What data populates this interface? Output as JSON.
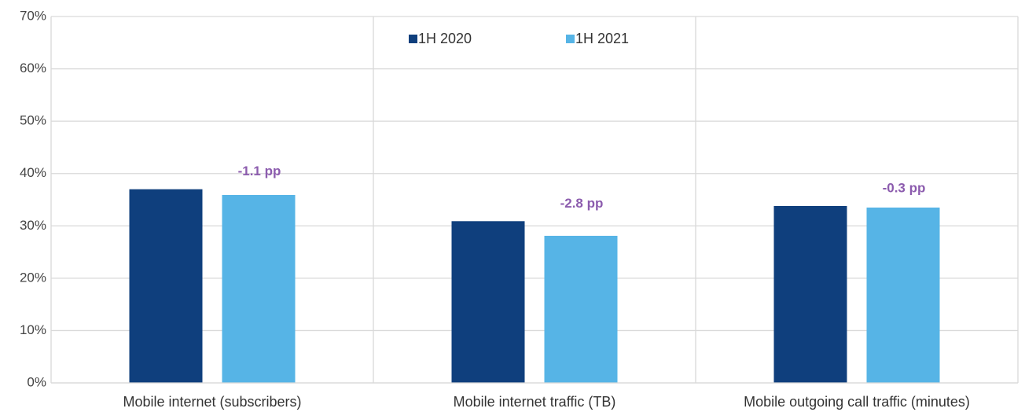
{
  "chart_data": {
    "type": "bar",
    "categories": [
      "Mobile internet (subscribers)",
      "Mobile internet traffic (TB)",
      "Mobile outgoing call traffic (minutes)"
    ],
    "series": [
      {
        "name": "1H 2020",
        "color": "#0f3f7d",
        "values": [
          37.0,
          30.9,
          33.8
        ]
      },
      {
        "name": "1H 2021",
        "color": "#56b4e6",
        "values": [
          35.9,
          28.1,
          33.5
        ]
      }
    ],
    "annotations": [
      "-1.1 pp",
      "-2.8 pp",
      "-0.3 pp"
    ],
    "ylim": [
      0,
      70
    ],
    "yticks": [
      {
        "value": 0,
        "label": "0%"
      },
      {
        "value": 10,
        "label": "10%"
      },
      {
        "value": 20,
        "label": "20%"
      },
      {
        "value": 30,
        "label": "30%"
      },
      {
        "value": 40,
        "label": "40%"
      },
      {
        "value": 50,
        "label": "50%"
      },
      {
        "value": 60,
        "label": "60%"
      },
      {
        "value": 70,
        "label": "70%"
      }
    ],
    "grid": true
  }
}
